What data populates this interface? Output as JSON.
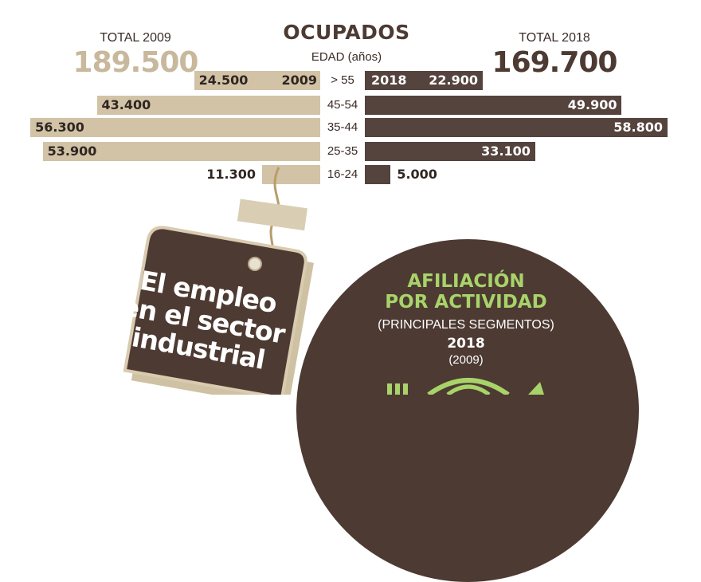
{
  "header": {
    "title": "OCUPADOS",
    "axis_caption": "EDAD (años)",
    "total_2009_label": "TOTAL 2009",
    "total_2009_value": "189.500",
    "total_2018_label": "TOTAL 2018",
    "total_2018_value": "169.700"
  },
  "colors": {
    "series_2009": "#d2c3a6",
    "series_2018": "#55433d",
    "accent_green": "#a8d36a"
  },
  "chart_data": {
    "type": "bar",
    "orientation": "horizontal-butterfly",
    "title": "OCUPADOS",
    "categories": [
      "> 55",
      "45-54",
      "35-44",
      "25-35",
      "16-24"
    ],
    "category_axis_label": "EDAD (años)",
    "series": [
      {
        "name": "2009",
        "values": [
          24500,
          43400,
          56300,
          53900,
          11300
        ],
        "labels": [
          "24.500",
          "43.400",
          "56.300",
          "53.900",
          "11.300"
        ]
      },
      {
        "name": "2018",
        "values": [
          22900,
          49900,
          58800,
          33100,
          5000
        ],
        "labels": [
          "22.900",
          "49.900",
          "58.800",
          "33.100",
          "5.000"
        ]
      }
    ],
    "totals": {
      "2009": "189.500",
      "2018": "169.700"
    },
    "grid": false,
    "legend": "inline"
  },
  "tag": {
    "text_line1": "El empleo",
    "text_line2": "en el sector",
    "text_line3": "industrial"
  },
  "circle": {
    "title_line1": "AFILIACIÓN",
    "title_line2": "POR ACTIVIDAD",
    "subtitle": "(PRINCIPALES SEGMENTOS)",
    "year": "2018",
    "prev_year": "(2009)",
    "icon": "industry-icon"
  }
}
